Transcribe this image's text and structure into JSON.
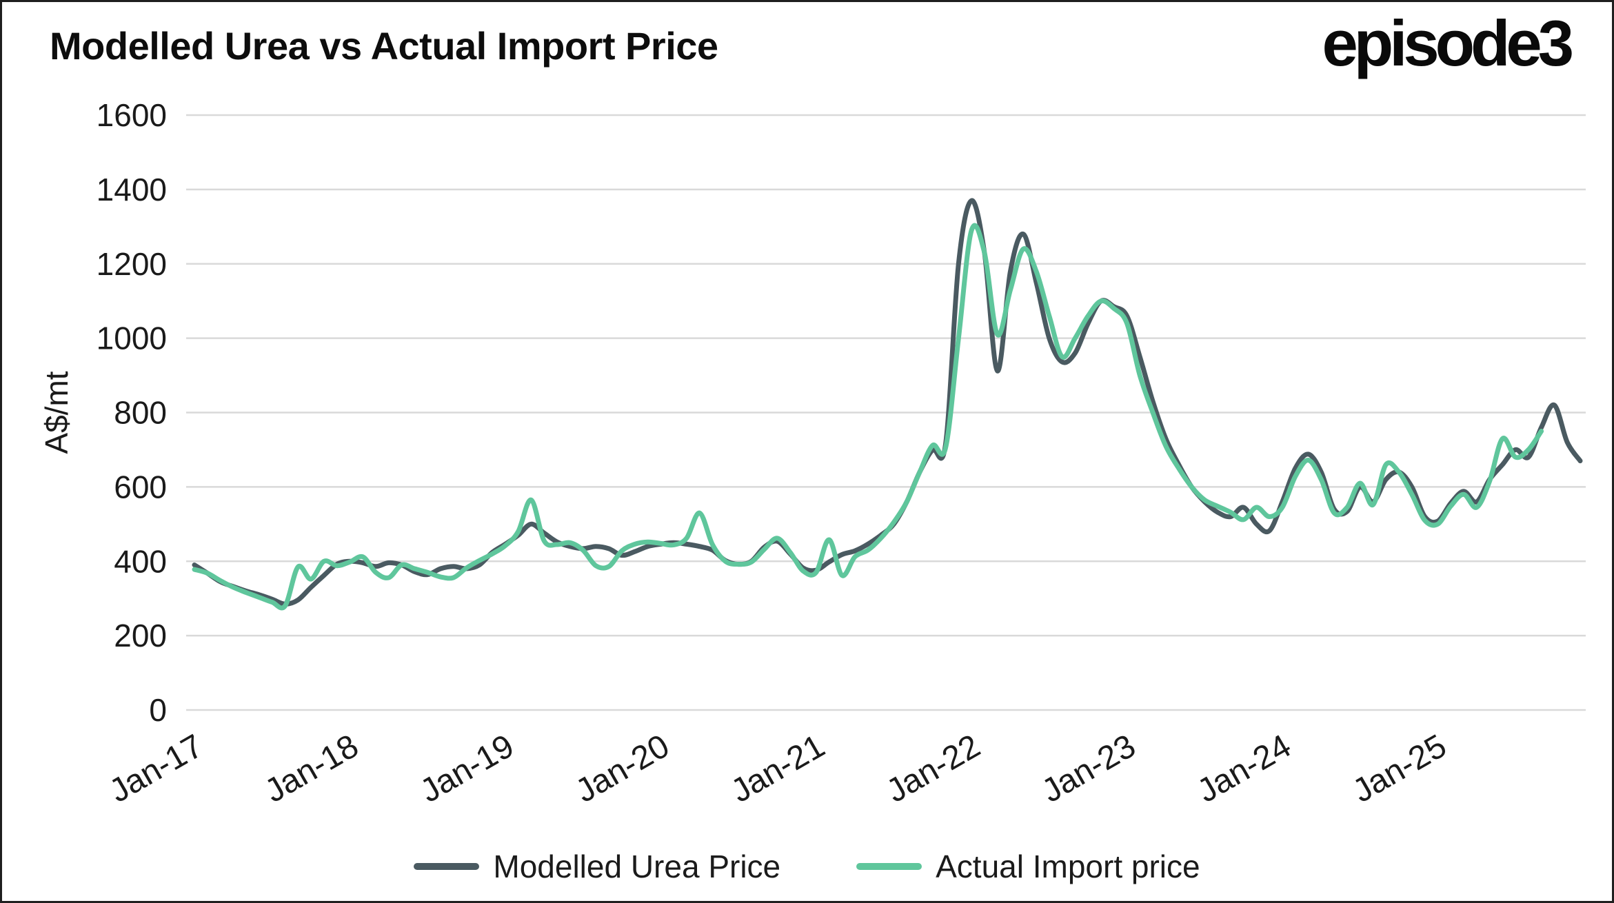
{
  "page": {
    "title": "Modelled Urea vs Actual Import Price",
    "logo": "episode3"
  },
  "legend": {
    "items": [
      {
        "label": "Modelled Urea Price",
        "color": "#4A5A61"
      },
      {
        "label": "Actual Import price",
        "color": "#5FC69C"
      }
    ]
  },
  "chart_data": {
    "type": "line",
    "title": "Modelled Urea vs Actual Import Price",
    "ylabel": "A$/mt",
    "ylim": [
      0,
      1600
    ],
    "yticks": [
      0,
      200,
      400,
      600,
      800,
      1000,
      1200,
      1400,
      1600
    ],
    "xticks": [
      "Jan-17",
      "Jan-18",
      "Jan-19",
      "Jan-20",
      "Jan-21",
      "Jan-22",
      "Jan-23",
      "Jan-24",
      "Jan-25"
    ],
    "grid": true,
    "legend_position": "bottom",
    "gridline_color": "#D9D9D9",
    "x_label_rotation": -30,
    "months": [
      "Jan-17",
      "Feb-17",
      "Mar-17",
      "Apr-17",
      "May-17",
      "Jun-17",
      "Jul-17",
      "Aug-17",
      "Sep-17",
      "Oct-17",
      "Nov-17",
      "Dec-17",
      "Jan-18",
      "Feb-18",
      "Mar-18",
      "Apr-18",
      "May-18",
      "Jun-18",
      "Jul-18",
      "Aug-18",
      "Sep-18",
      "Oct-18",
      "Nov-18",
      "Dec-18",
      "Jan-19",
      "Feb-19",
      "Mar-19",
      "Apr-19",
      "May-19",
      "Jun-19",
      "Jul-19",
      "Aug-19",
      "Sep-19",
      "Oct-19",
      "Nov-19",
      "Dec-19",
      "Jan-20",
      "Feb-20",
      "Mar-20",
      "Apr-20",
      "May-20",
      "Jun-20",
      "Jul-20",
      "Aug-20",
      "Sep-20",
      "Oct-20",
      "Nov-20",
      "Dec-20",
      "Jan-21",
      "Feb-21",
      "Mar-21",
      "Apr-21",
      "May-21",
      "Jun-21",
      "Jul-21",
      "Aug-21",
      "Sep-21",
      "Oct-21",
      "Nov-21",
      "Dec-21",
      "Jan-22",
      "Feb-22",
      "Mar-22",
      "Apr-22",
      "May-22",
      "Jun-22",
      "Jul-22",
      "Aug-22",
      "Sep-22",
      "Oct-22",
      "Nov-22",
      "Dec-22",
      "Jan-23",
      "Feb-23",
      "Mar-23",
      "Apr-23",
      "May-23",
      "Jun-23",
      "Jul-23",
      "Aug-23",
      "Sep-23",
      "Oct-23",
      "Nov-23",
      "Dec-23",
      "Jan-24",
      "Feb-24",
      "Mar-24",
      "Apr-24",
      "May-24",
      "Jun-24",
      "Jul-24",
      "Aug-24",
      "Sep-24",
      "Oct-24",
      "Nov-24",
      "Dec-24",
      "Jan-25",
      "Feb-25",
      "Mar-25",
      "Apr-25",
      "May-25",
      "Jun-25",
      "Jul-25",
      "Aug-25",
      "Sep-25",
      "Oct-25",
      "Nov-25",
      "Dec-25"
    ],
    "series": [
      {
        "name": "Modelled Urea Price",
        "color": "#4A5A61",
        "values": [
          390,
          368,
          345,
          332,
          320,
          310,
          298,
          285,
          296,
          330,
          362,
          392,
          400,
          396,
          386,
          396,
          390,
          372,
          364,
          380,
          386,
          380,
          390,
          424,
          446,
          470,
          500,
          476,
          452,
          440,
          434,
          440,
          434,
          416,
          426,
          440,
          446,
          450,
          446,
          440,
          430,
          402,
          392,
          400,
          438,
          454,
          420,
          382,
          376,
          398,
          418,
          428,
          446,
          470,
          500,
          560,
          640,
          700,
          715,
          1200,
          1370,
          1230,
          912,
          1180,
          1280,
          1150,
          1000,
          936,
          960,
          1040,
          1100,
          1085,
          1060,
          950,
          830,
          730,
          660,
          600,
          560,
          532,
          520,
          545,
          500,
          482,
          560,
          650,
          688,
          640,
          540,
          534,
          600,
          560,
          620,
          640,
          600,
          520,
          508,
          556,
          588,
          560,
          620,
          660,
          700,
          680,
          760,
          820,
          720,
          670
        ]
      },
      {
        "name": "Actual Import price",
        "color": "#5FC69C",
        "values": [
          378,
          368,
          348,
          330,
          316,
          303,
          290,
          280,
          385,
          352,
          400,
          388,
          398,
          412,
          370,
          356,
          390,
          380,
          370,
          358,
          356,
          382,
          402,
          420,
          442,
          480,
          565,
          455,
          445,
          450,
          430,
          388,
          386,
          428,
          446,
          452,
          448,
          444,
          462,
          530,
          445,
          400,
          392,
          398,
          432,
          462,
          424,
          374,
          370,
          458,
          362,
          412,
          430,
          462,
          505,
          560,
          640,
          712,
          705,
          1000,
          1290,
          1230,
          1010,
          1130,
          1240,
          1180,
          1060,
          950,
          1000,
          1060,
          1100,
          1080,
          1040,
          900,
          800,
          710,
          650,
          600,
          565,
          548,
          532,
          512,
          545,
          520,
          545,
          628,
          672,
          620,
          530,
          545,
          610,
          552,
          660,
          640,
          580,
          510,
          500,
          548,
          580,
          545,
          615,
          730,
          680,
          700,
          750,
          null,
          null,
          null
        ]
      }
    ]
  }
}
